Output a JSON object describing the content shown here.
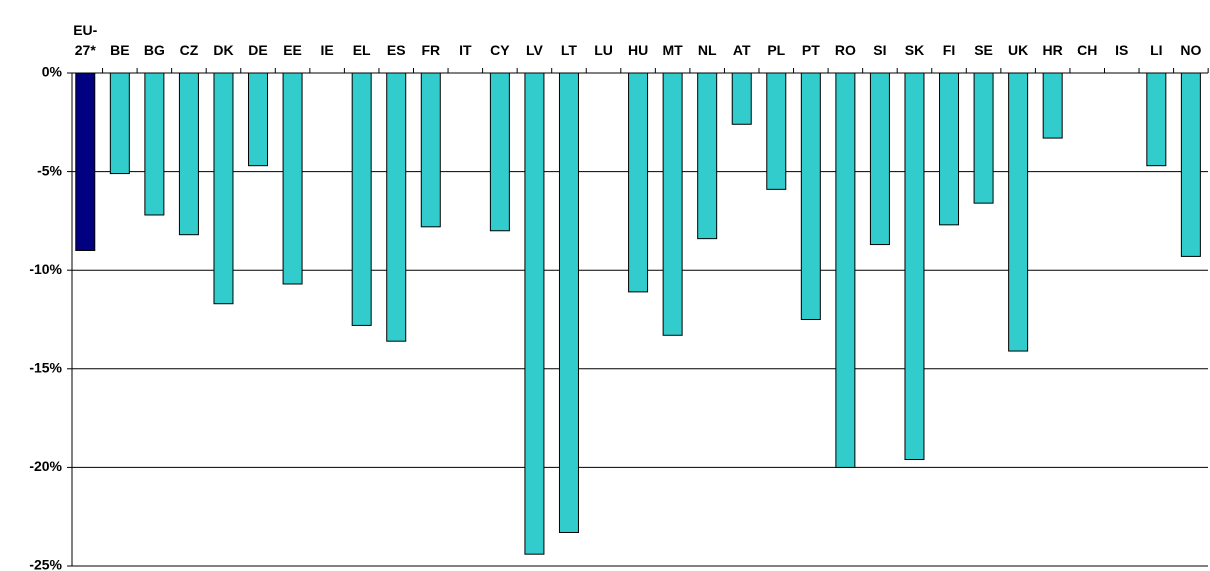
{
  "chart_data": {
    "type": "bar",
    "categories": [
      "EU-27*",
      "BE",
      "BG",
      "CZ",
      "DK",
      "DE",
      "EE",
      "IE",
      "EL",
      "ES",
      "FR",
      "IT",
      "CY",
      "LV",
      "LT",
      "LU",
      "HU",
      "MT",
      "NL",
      "AT",
      "PL",
      "PT",
      "RO",
      "SI",
      "SK",
      "FI",
      "SE",
      "UK",
      "HR",
      "CH",
      "IS",
      "LI",
      "NO"
    ],
    "values": [
      -9.0,
      -5.1,
      -7.2,
      -8.2,
      -11.7,
      -4.7,
      -10.7,
      null,
      -12.8,
      -13.6,
      -7.8,
      null,
      -8.0,
      -24.4,
      -23.3,
      null,
      -11.1,
      -13.3,
      -8.4,
      -2.6,
      -5.9,
      -12.5,
      -20.0,
      -8.7,
      -19.6,
      -7.7,
      -6.6,
      -14.1,
      -3.3,
      null,
      null,
      -4.7,
      -9.3
    ],
    "colors": [
      "#000080",
      "#33cccc",
      "#33cccc",
      "#33cccc",
      "#33cccc",
      "#33cccc",
      "#33cccc",
      "#33cccc",
      "#33cccc",
      "#33cccc",
      "#33cccc",
      "#33cccc",
      "#33cccc",
      "#33cccc",
      "#33cccc",
      "#33cccc",
      "#33cccc",
      "#33cccc",
      "#33cccc",
      "#33cccc",
      "#33cccc",
      "#33cccc",
      "#33cccc",
      "#33cccc",
      "#33cccc",
      "#33cccc",
      "#33cccc",
      "#33cccc",
      "#33cccc",
      "#33cccc",
      "#33cccc",
      "#33cccc",
      "#33cccc"
    ],
    "ylim": [
      -25,
      0
    ],
    "yticks": [
      {
        "value": 0,
        "label": "0%"
      },
      {
        "value": -5,
        "label": "-5%"
      },
      {
        "value": -10,
        "label": "-10%"
      },
      {
        "value": -15,
        "label": "-15%"
      },
      {
        "value": -20,
        "label": "-20%"
      },
      {
        "value": -25,
        "label": "-25%"
      }
    ],
    "grid": true
  }
}
